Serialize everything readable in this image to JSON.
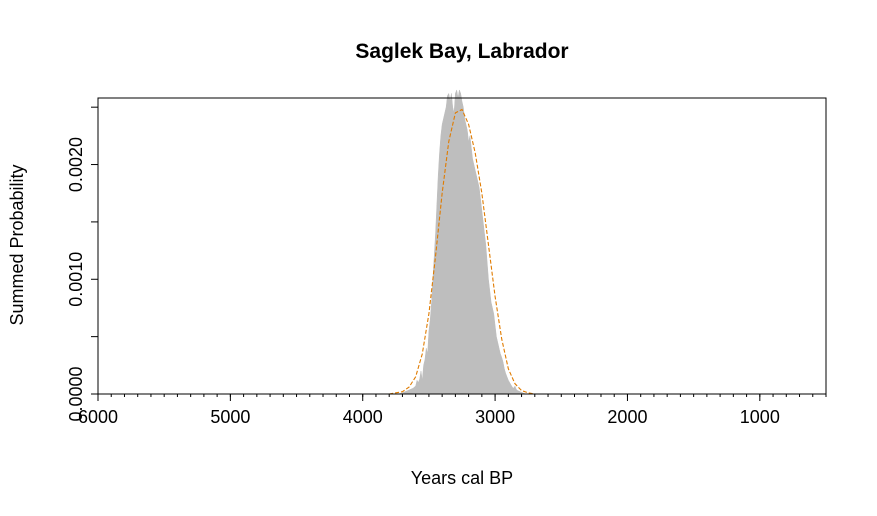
{
  "chart_data": {
    "type": "area",
    "title": "Saglek Bay, Labrador",
    "xlabel": "Years cal BP",
    "ylabel": "Summed Probability",
    "xlim": [
      6000,
      500
    ],
    "ylim": [
      0,
      0.00258
    ],
    "x_reversed": true,
    "x_ticks": [
      6000,
      5000,
      4000,
      3000,
      2000,
      1000
    ],
    "x_tick_labels": [
      "6000",
      "5000",
      "4000",
      "3000",
      "2000",
      "1000"
    ],
    "x_minor_step": 100,
    "y_ticks": [
      0,
      0.0005,
      0.001,
      0.0015,
      0.002,
      0.0025
    ],
    "y_tick_labels": [
      "0.0000",
      "",
      "0.0010",
      "",
      "0.0020",
      ""
    ],
    "grid": false,
    "legend": "none",
    "series": [
      {
        "style": "filled",
        "color": "#bebebe",
        "x": [
          3730,
          3700,
          3660,
          3640,
          3620,
          3600,
          3590,
          3580,
          3570,
          3560,
          3550,
          3540,
          3530,
          3520,
          3510,
          3500,
          3490,
          3480,
          3470,
          3460,
          3450,
          3440,
          3430,
          3420,
          3410,
          3400,
          3390,
          3380,
          3370,
          3360,
          3350,
          3340,
          3330,
          3320,
          3310,
          3300,
          3290,
          3280,
          3270,
          3260,
          3250,
          3240,
          3230,
          3220,
          3210,
          3200,
          3190,
          3180,
          3170,
          3160,
          3150,
          3140,
          3130,
          3120,
          3110,
          3100,
          3090,
          3080,
          3070,
          3060,
          3050,
          3040,
          3030,
          3020,
          3010,
          3000,
          2990,
          2980,
          2970,
          2960,
          2950,
          2940,
          2930,
          2920,
          2910,
          2900,
          2890,
          2880,
          2870,
          2860,
          2850,
          2840,
          2830,
          2810,
          2790,
          2770
        ],
        "y": [
          0,
          1e-05,
          3e-05,
          4e-05,
          5e-05,
          7e-05,
          0.00012,
          0.0001,
          0.00013,
          0.0002,
          0.00012,
          0.00025,
          0.0003,
          0.0004,
          0.00035,
          0.00055,
          0.00065,
          0.0008,
          0.001,
          0.0012,
          0.0014,
          0.00165,
          0.0019,
          0.0021,
          0.00225,
          0.00235,
          0.0024,
          0.00245,
          0.0025,
          0.0026,
          0.00262,
          0.00255,
          0.00262,
          0.0025,
          0.00245,
          0.00262,
          0.00265,
          0.00258,
          0.00265,
          0.00262,
          0.00255,
          0.0025,
          0.0024,
          0.00235,
          0.0023,
          0.0022,
          0.00225,
          0.00215,
          0.00205,
          0.002,
          0.00195,
          0.0019,
          0.00185,
          0.0018,
          0.0017,
          0.0016,
          0.0015,
          0.0014,
          0.0013,
          0.00115,
          0.001,
          0.0009,
          0.0008,
          0.00075,
          0.0007,
          0.0006,
          0.0005,
          0.00045,
          0.0004,
          0.00035,
          0.00032,
          0.00028,
          0.00022,
          0.00018,
          0.00015,
          0.00012,
          0.0001,
          8e-05,
          6e-05,
          5e-05,
          7e-05,
          4e-05,
          3e-05,
          2e-05,
          1e-05,
          0
        ]
      },
      {
        "style": "dashed",
        "color": "#e07b00",
        "x": [
          3800,
          3700,
          3650,
          3600,
          3550,
          3500,
          3450,
          3400,
          3350,
          3300,
          3250,
          3200,
          3150,
          3100,
          3050,
          3000,
          2950,
          2900,
          2850,
          2800,
          2750,
          2700
        ],
        "y": [
          0,
          2e-05,
          6e-05,
          0.00015,
          0.00035,
          0.0007,
          0.0012,
          0.00175,
          0.0022,
          0.00245,
          0.00248,
          0.00235,
          0.0021,
          0.00175,
          0.0013,
          0.00085,
          0.00048,
          0.00022,
          9e-05,
          3e-05,
          1e-05,
          0
        ]
      }
    ]
  }
}
